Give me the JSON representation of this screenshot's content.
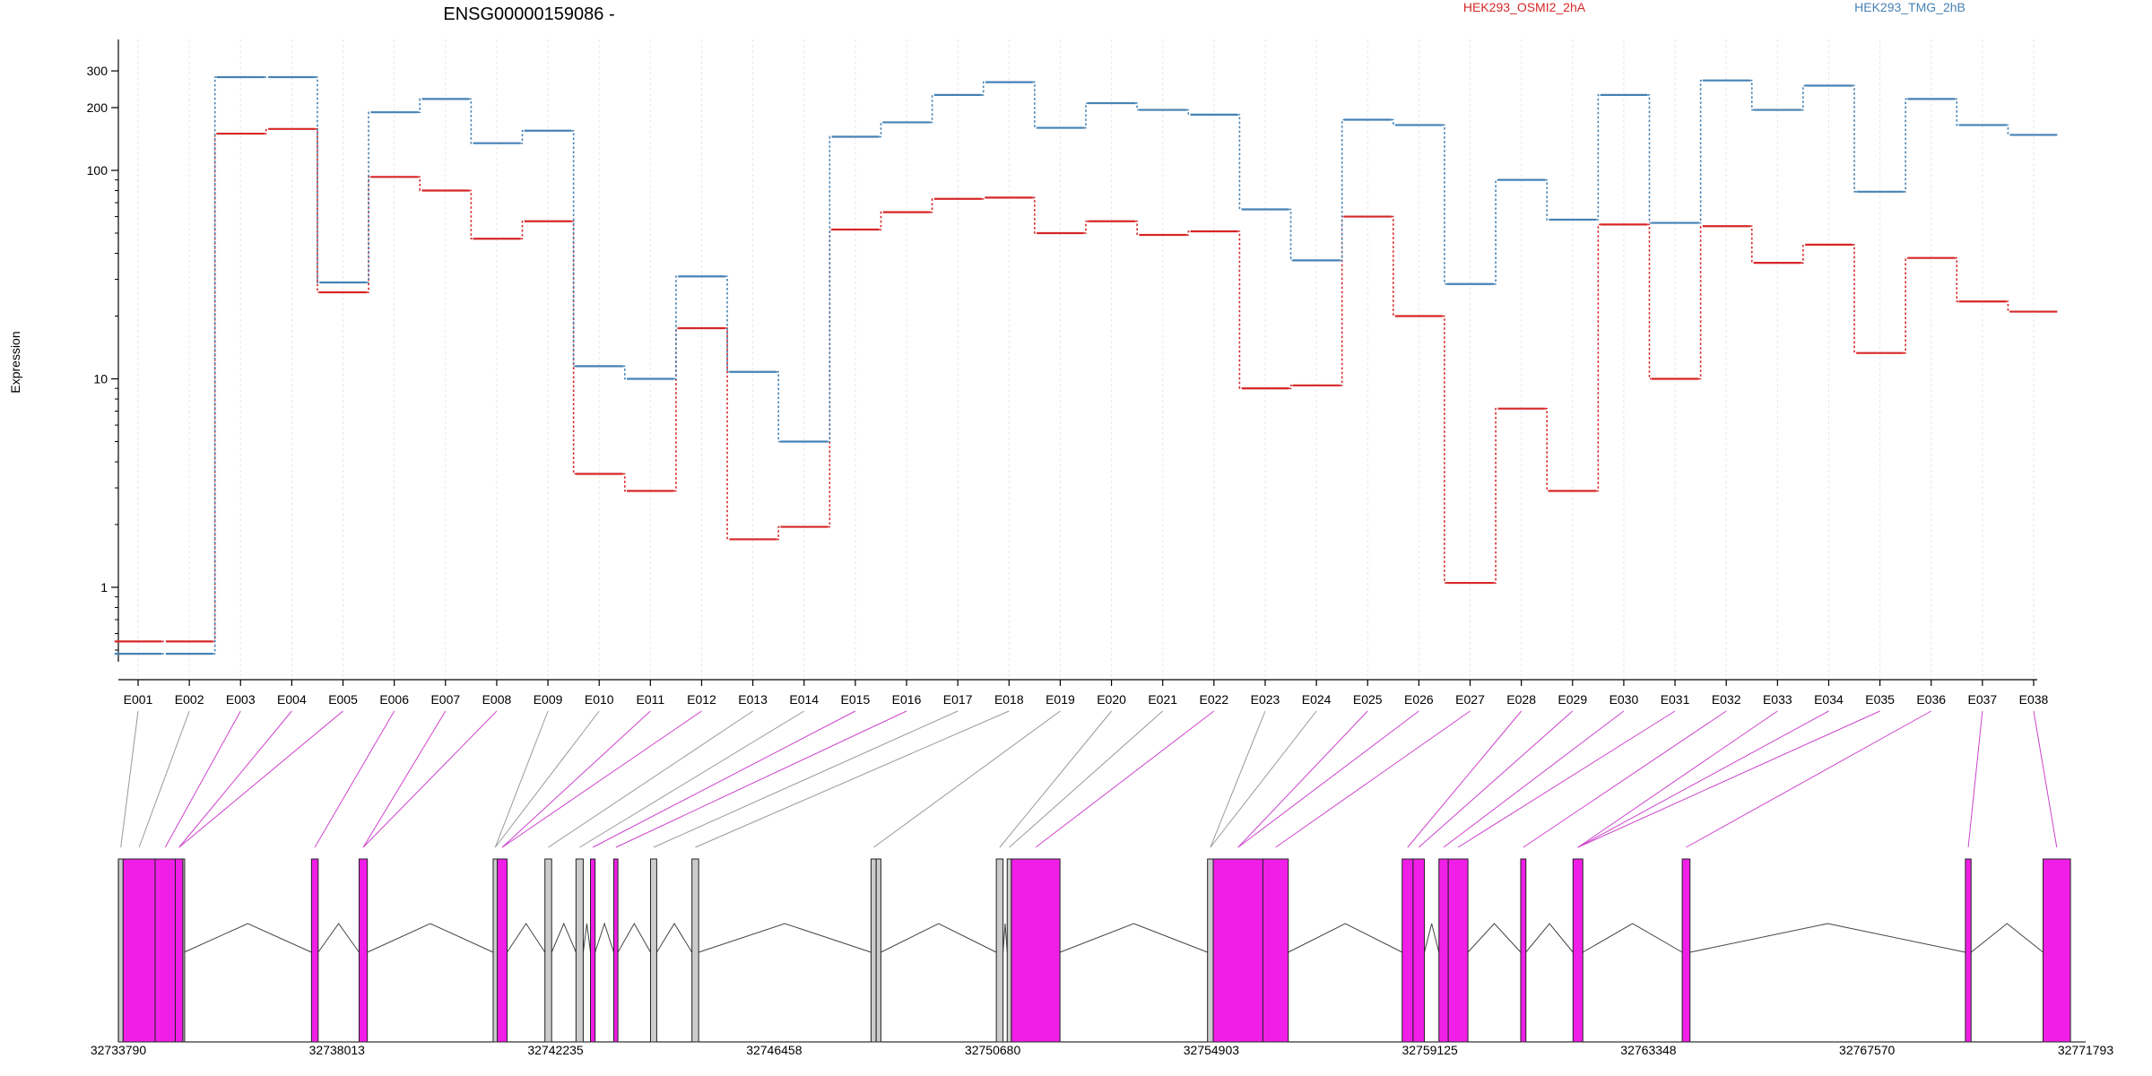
{
  "chart_data": {
    "type": "line",
    "title": "ENSG00000159086 -",
    "ylabel": "Expression",
    "y_scale": "log",
    "ylim": [
      0.45,
      350
    ],
    "y_ticks": [
      1,
      10,
      100,
      200,
      300
    ],
    "y_tick_labels": [
      "1",
      "10",
      "100",
      "200",
      "300"
    ],
    "categories": [
      "E001",
      "E002",
      "E003",
      "E004",
      "E005",
      "E006",
      "E007",
      "E008",
      "E009",
      "E010",
      "E011",
      "E012",
      "E013",
      "E014",
      "E015",
      "E016",
      "E017",
      "E018",
      "E019",
      "E020",
      "E021",
      "E022",
      "E023",
      "E024",
      "E025",
      "E026",
      "E027",
      "E028",
      "E029",
      "E030",
      "E031",
      "E032",
      "E033",
      "E034",
      "E035",
      "E036",
      "E037",
      "E038"
    ],
    "series": [
      {
        "name": "HEK293_OSMI2_2hA",
        "color": "#d62728",
        "values": [
          0.55,
          0.55,
          150,
          158,
          26,
          93,
          80,
          47,
          57,
          3.5,
          2.9,
          17.5,
          1.7,
          1.95,
          52,
          63,
          73,
          74,
          50,
          57,
          49,
          51,
          9,
          9.3,
          60,
          20,
          1.05,
          7.2,
          2.9,
          55,
          10,
          54,
          36,
          44,
          13.3,
          38,
          23.5,
          21
        ]
      },
      {
        "name": "HEK293_TMG_2hB",
        "color": "#4682b4",
        "values": [
          0.48,
          0.48,
          280,
          280,
          29,
          190,
          220,
          135,
          155,
          11.5,
          10,
          31,
          10.8,
          5.0,
          145,
          170,
          230,
          265,
          160,
          210,
          195,
          185,
          65,
          37,
          175,
          165,
          28.5,
          90,
          58,
          230,
          56,
          270,
          195,
          255,
          79,
          220,
          165,
          148
        ]
      }
    ],
    "genome": {
      "tick_labels": [
        "32733790",
        "32738013",
        "32742235",
        "32746458",
        "32750680",
        "32754903",
        "32759125",
        "32763348",
        "32767570",
        "32771793"
      ],
      "exons": [
        {
          "id": "E001",
          "start": 32733792,
          "end": 32733882,
          "color": "#cccccc"
        },
        {
          "id": "E002",
          "start": 32733882,
          "end": 32734500,
          "color": "#f01ee6"
        },
        {
          "id": "E003",
          "start": 32734500,
          "end": 32734890,
          "color": "#f01ee6"
        },
        {
          "id": "E004",
          "start": 32734890,
          "end": 32735036,
          "color": "#f01ee6"
        },
        {
          "id": "E005",
          "start": 32735036,
          "end": 32735060,
          "color": "#cccccc"
        },
        {
          "id": "E006",
          "start": 32737520,
          "end": 32737650,
          "color": "#f01ee6"
        },
        {
          "id": "E007",
          "start": 32738440,
          "end": 32738600,
          "color": "#f01ee6"
        },
        {
          "id": "E008",
          "start": 32741030,
          "end": 32741110,
          "color": "#cccccc"
        },
        {
          "id": "E009",
          "start": 32741110,
          "end": 32741300,
          "color": "#f01ee6"
        },
        {
          "id": "E010",
          "start": 32742030,
          "end": 32742160,
          "color": "#cccccc"
        },
        {
          "id": "E011",
          "start": 32742630,
          "end": 32742770,
          "color": "#cccccc"
        },
        {
          "id": "E012",
          "start": 32742910,
          "end": 32743000,
          "color": "#f01ee6"
        },
        {
          "id": "E013",
          "start": 32743360,
          "end": 32743440,
          "color": "#f01ee6"
        },
        {
          "id": "E014",
          "start": 32744070,
          "end": 32744190,
          "color": "#cccccc"
        },
        {
          "id": "E015",
          "start": 32744870,
          "end": 32745000,
          "color": "#cccccc"
        },
        {
          "id": "E016",
          "start": 32748330,
          "end": 32748430,
          "color": "#cccccc"
        },
        {
          "id": "E017",
          "start": 32748430,
          "end": 32748520,
          "color": "#cccccc"
        },
        {
          "id": "E018",
          "start": 32750750,
          "end": 32750880,
          "color": "#cccccc"
        },
        {
          "id": "E019",
          "start": 32750960,
          "end": 32751040,
          "color": "#cccccc"
        },
        {
          "id": "E020",
          "start": 32751040,
          "end": 32751980,
          "color": "#f01ee6"
        },
        {
          "id": "E021",
          "start": 32754830,
          "end": 32754940,
          "color": "#cccccc"
        },
        {
          "id": "E022",
          "start": 32754940,
          "end": 32755900,
          "color": "#f01ee6"
        },
        {
          "id": "E023",
          "start": 32755900,
          "end": 32756390,
          "color": "#f01ee6"
        },
        {
          "id": "E024",
          "start": 32758590,
          "end": 32758800,
          "color": "#f01ee6"
        },
        {
          "id": "E025",
          "start": 32758800,
          "end": 32759020,
          "color": "#f01ee6"
        },
        {
          "id": "E026",
          "start": 32759300,
          "end": 32759480,
          "color": "#f01ee6"
        },
        {
          "id": "E027",
          "start": 32759480,
          "end": 32759860,
          "color": "#f01ee6"
        },
        {
          "id": "E028",
          "start": 32760880,
          "end": 32760980,
          "color": "#f01ee6"
        },
        {
          "id": "E029",
          "start": 32761890,
          "end": 32762080,
          "color": "#f01ee6"
        },
        {
          "id": "E030",
          "start": 32764000,
          "end": 32764150,
          "color": "#f01ee6"
        },
        {
          "id": "E031",
          "start": 32769470,
          "end": 32769580,
          "color": "#f01ee6"
        },
        {
          "id": "E032",
          "start": 32770970,
          "end": 32771500,
          "color": "#f01ee6"
        }
      ]
    },
    "exon_links": [
      {
        "label": "E001",
        "exon": "E001",
        "color": "#999999"
      },
      {
        "label": "E002",
        "exon": "E002",
        "color": "#999999"
      },
      {
        "label": "E003",
        "exon": "E003",
        "color": "#cc44cc"
      },
      {
        "label": "E004",
        "exon": "E004",
        "color": "#cc44cc"
      },
      {
        "label": "E005",
        "exon": "E004",
        "color": "#cc44cc"
      },
      {
        "label": "E006",
        "exon": "E006",
        "color": "#cc44cc"
      },
      {
        "label": "E007",
        "exon": "E007",
        "color": "#cc44cc"
      },
      {
        "label": "E008",
        "exon": "E007",
        "color": "#cc44cc"
      },
      {
        "label": "E009",
        "exon": "E008",
        "color": "#999999"
      },
      {
        "label": "E010",
        "exon": "E008",
        "color": "#999999"
      },
      {
        "label": "E011",
        "exon": "E009",
        "color": "#cc44cc"
      },
      {
        "label": "E012",
        "exon": "E009",
        "color": "#cc44cc"
      },
      {
        "label": "E013",
        "exon": "E010",
        "color": "#999999"
      },
      {
        "label": "E014",
        "exon": "E011",
        "color": "#999999"
      },
      {
        "label": "E015",
        "exon": "E012",
        "color": "#cc44cc"
      },
      {
        "label": "E016",
        "exon": "E013",
        "color": "#cc44cc"
      },
      {
        "label": "E017",
        "exon": "E014",
        "color": "#999999"
      },
      {
        "label": "E018",
        "exon": "E015",
        "color": "#999999"
      },
      {
        "label": "E019",
        "exon": "E016",
        "color": "#999999"
      },
      {
        "label": "E020",
        "exon": "E018",
        "color": "#999999"
      },
      {
        "label": "E021",
        "exon": "E019",
        "color": "#999999"
      },
      {
        "label": "E022",
        "exon": "E020",
        "color": "#cc44cc"
      },
      {
        "label": "E023",
        "exon": "E021",
        "color": "#999999"
      },
      {
        "label": "E024",
        "exon": "E021",
        "color": "#999999"
      },
      {
        "label": "E025",
        "exon": "E022",
        "color": "#cc44cc"
      },
      {
        "label": "E026",
        "exon": "E022",
        "color": "#cc44cc"
      },
      {
        "label": "E027",
        "exon": "E023",
        "color": "#cc44cc"
      },
      {
        "label": "E028",
        "exon": "E024",
        "color": "#cc44cc"
      },
      {
        "label": "E029",
        "exon": "E025",
        "color": "#cc44cc"
      },
      {
        "label": "E030",
        "exon": "E026",
        "color": "#cc44cc"
      },
      {
        "label": "E031",
        "exon": "E027",
        "color": "#cc44cc"
      },
      {
        "label": "E032",
        "exon": "E028",
        "color": "#cc44cc"
      },
      {
        "label": "E033",
        "exon": "E029",
        "color": "#cc44cc"
      },
      {
        "label": "E034",
        "exon": "E029",
        "color": "#cc44cc"
      },
      {
        "label": "E035",
        "exon": "E029",
        "color": "#cc44cc"
      },
      {
        "label": "E036",
        "exon": "E030",
        "color": "#cc44cc"
      },
      {
        "label": "E037",
        "exon": "E031",
        "color": "#cc44cc"
      },
      {
        "label": "E038",
        "exon": "E032",
        "color": "#cc44cc"
      }
    ]
  }
}
